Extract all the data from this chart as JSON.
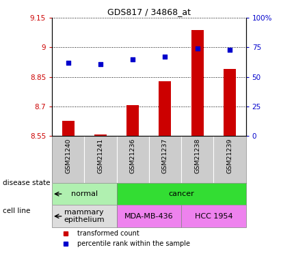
{
  "title": "GDS817 / 34868_at",
  "samples": [
    "GSM21240",
    "GSM21241",
    "GSM21236",
    "GSM21237",
    "GSM21238",
    "GSM21239"
  ],
  "transformed_counts": [
    8.625,
    8.557,
    8.706,
    8.826,
    9.09,
    8.89
  ],
  "percentile_ranks": [
    62,
    61,
    65,
    67,
    74,
    73
  ],
  "ylim_left": [
    8.55,
    9.15
  ],
  "ylim_right": [
    0,
    100
  ],
  "yticks_left": [
    8.55,
    8.7,
    8.85,
    9.0,
    9.15
  ],
  "yticks_right": [
    0,
    25,
    50,
    75,
    100
  ],
  "ytick_labels_left": [
    "8.55",
    "8.7",
    "8.85",
    "9",
    "9.15"
  ],
  "ytick_labels_right": [
    "0",
    "25",
    "50",
    "75",
    "100%"
  ],
  "bar_color": "#cc0000",
  "dot_color": "#0000cc",
  "bar_bottom": 8.55,
  "disease_state_groups": [
    {
      "label": "normal",
      "start": 0,
      "end": 2,
      "color": "#b0f0b0"
    },
    {
      "label": "cancer",
      "start": 2,
      "end": 6,
      "color": "#33dd33"
    }
  ],
  "cell_line_groups": [
    {
      "label": "mammary\nepithelium",
      "start": 0,
      "end": 2,
      "color": "#dddddd"
    },
    {
      "label": "MDA-MB-436",
      "start": 2,
      "end": 4,
      "color": "#ee82ee"
    },
    {
      "label": "HCC 1954",
      "start": 4,
      "end": 6,
      "color": "#ee82ee"
    }
  ],
  "legend_items": [
    {
      "label": "transformed count",
      "color": "#cc0000",
      "marker": "s"
    },
    {
      "label": "percentile rank within the sample",
      "color": "#0000cc",
      "marker": "s"
    }
  ],
  "left_label_color": "#cc0000",
  "right_label_color": "#0000cc",
  "annotation_disease": "disease state",
  "annotation_cell": "cell line",
  "sample_box_color": "#cccccc",
  "grid_linestyle": ":"
}
